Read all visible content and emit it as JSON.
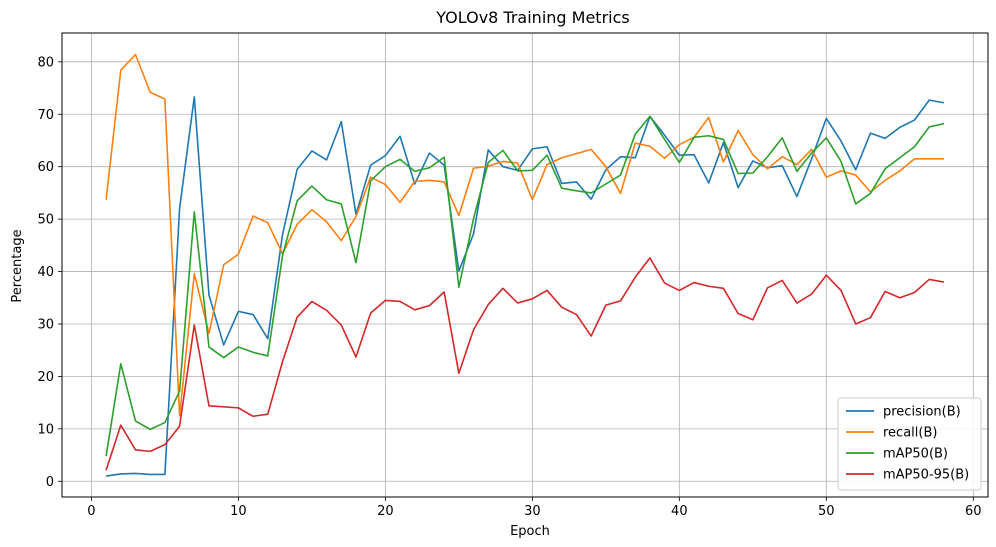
{
  "chart_data": {
    "type": "line",
    "title": "YOLOv8 Training Metrics",
    "xlabel": "Epoch",
    "ylabel": "Percentage",
    "xlim": [
      -2,
      61
    ],
    "ylim": [
      -3,
      85.5
    ],
    "xticks": [
      0,
      10,
      20,
      30,
      40,
      50,
      60
    ],
    "yticks": [
      0,
      10,
      20,
      30,
      40,
      50,
      60,
      70,
      80
    ],
    "grid": true,
    "legend_position": "lower-right",
    "x": [
      1,
      2,
      3,
      4,
      5,
      6,
      7,
      8,
      9,
      10,
      11,
      12,
      13,
      14,
      15,
      16,
      17,
      18,
      19,
      20,
      21,
      22,
      23,
      24,
      25,
      26,
      27,
      28,
      29,
      30,
      31,
      32,
      33,
      34,
      35,
      36,
      37,
      38,
      39,
      40,
      41,
      42,
      43,
      44,
      45,
      46,
      47,
      48,
      49,
      50,
      51,
      52,
      53,
      54,
      55,
      56,
      57,
      58
    ],
    "series": [
      {
        "name": "precision(B)",
        "color": "#1f77b4",
        "values": [
          1.0,
          1.4,
          1.5,
          1.3,
          1.3,
          52.0,
          73.3,
          35.5,
          26.0,
          32.4,
          31.8,
          27.2,
          47.0,
          59.5,
          63.0,
          61.3,
          68.6,
          50.9,
          60.3,
          62.1,
          65.8,
          56.7,
          62.6,
          60.3,
          40.1,
          47.2,
          63.2,
          60.0,
          59.3,
          63.4,
          63.8,
          56.8,
          57.1,
          53.8,
          59.4,
          61.9,
          61.7,
          69.6,
          66.0,
          62.2,
          62.3,
          56.9,
          64.6,
          56.0,
          61.1,
          59.8,
          60.2,
          54.3,
          61.5,
          69.2,
          64.9,
          59.4,
          66.4,
          65.4,
          67.5,
          68.9,
          72.7,
          72.2
        ]
      },
      {
        "name": "recall(B)",
        "color": "#ff7f0e",
        "values": [
          53.7,
          78.4,
          81.4,
          74.2,
          72.9,
          12.5,
          39.6,
          28.2,
          41.3,
          43.3,
          50.6,
          49.3,
          43.4,
          49.0,
          51.8,
          49.5,
          45.9,
          50.5,
          58.0,
          56.6,
          53.2,
          57.2,
          57.4,
          57.1,
          50.7,
          59.7,
          60.1,
          61.0,
          60.7,
          53.7,
          60.4,
          61.7,
          62.5,
          63.3,
          60.0,
          54.9,
          64.5,
          63.9,
          61.6,
          64.2,
          65.6,
          69.4,
          60.9,
          66.9,
          62.3,
          59.6,
          61.9,
          60.4,
          63.3,
          58.0,
          59.2,
          58.4,
          55.2,
          57.4,
          59.2,
          61.5,
          61.5,
          61.5
        ]
      },
      {
        "name": "mAP50(B)",
        "color": "#2ca02c",
        "values": [
          4.8,
          22.4,
          11.5,
          9.9,
          11.2,
          17.2,
          51.4,
          25.6,
          23.6,
          25.6,
          24.6,
          23.9,
          43.0,
          53.5,
          56.3,
          53.7,
          52.9,
          41.7,
          57.3,
          60.0,
          61.4,
          59.1,
          59.8,
          61.8,
          37.0,
          50.1,
          60.8,
          63.1,
          59.2,
          59.3,
          62.2,
          55.9,
          55.4,
          55.0,
          56.7,
          58.4,
          66.2,
          69.6,
          65.2,
          60.8,
          65.6,
          65.9,
          65.2,
          58.7,
          58.8,
          61.9,
          65.5,
          59.1,
          62.6,
          65.5,
          61.0,
          52.9,
          54.9,
          59.6,
          61.7,
          63.8,
          67.6,
          68.2
        ]
      },
      {
        "name": "mAP50-95(B)",
        "color": "#d62728",
        "values": [
          2.1,
          10.7,
          6.0,
          5.7,
          7.0,
          10.5,
          29.8,
          14.4,
          14.2,
          14.0,
          12.4,
          12.8,
          22.8,
          31.3,
          34.3,
          32.6,
          29.8,
          23.7,
          32.1,
          34.5,
          34.3,
          32.7,
          33.5,
          36.1,
          20.6,
          28.9,
          33.7,
          36.8,
          34.0,
          34.8,
          36.4,
          33.2,
          31.8,
          27.7,
          33.6,
          34.4,
          38.9,
          42.6,
          37.8,
          36.4,
          37.9,
          37.2,
          36.8,
          32.0,
          30.8,
          36.9,
          38.3,
          34.0,
          35.7,
          39.3,
          36.4,
          30.0,
          31.2,
          36.2,
          35.0,
          36.0,
          38.5,
          38.0
        ]
      }
    ]
  }
}
